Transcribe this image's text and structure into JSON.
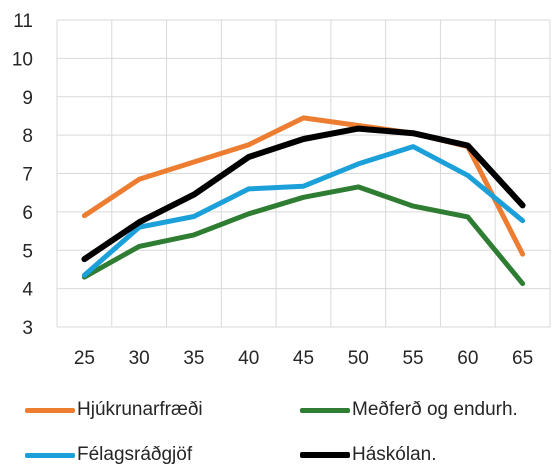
{
  "chart_data": {
    "type": "line",
    "x": [
      25,
      30,
      35,
      40,
      45,
      50,
      55,
      60,
      65
    ],
    "ylim": [
      3,
      11
    ],
    "yticks": [
      3,
      4,
      5,
      6,
      7,
      8,
      9,
      10,
      11
    ],
    "grid": true,
    "legend_position": "bottom",
    "series": [
      {
        "name": "Hjúkrunarfræði",
        "color": "#ED7D31",
        "values": [
          5.9,
          6.85,
          7.3,
          7.75,
          8.45,
          8.25,
          8.05,
          7.7,
          4.9
        ]
      },
      {
        "name": "Meðferð og endurh.",
        "color": "#2E7D32",
        "values": [
          4.3,
          5.1,
          5.4,
          5.95,
          6.38,
          6.65,
          6.15,
          5.87,
          4.13
        ]
      },
      {
        "name": "Félagsráðgjöf",
        "color": "#1CA0DA",
        "values": [
          4.35,
          5.6,
          5.88,
          6.6,
          6.67,
          7.25,
          7.7,
          6.95,
          5.77
        ]
      },
      {
        "name": "Háskólan.",
        "color": "#000000",
        "values": [
          4.77,
          5.73,
          6.45,
          7.43,
          7.9,
          8.17,
          8.05,
          7.73,
          6.17
        ]
      }
    ]
  }
}
